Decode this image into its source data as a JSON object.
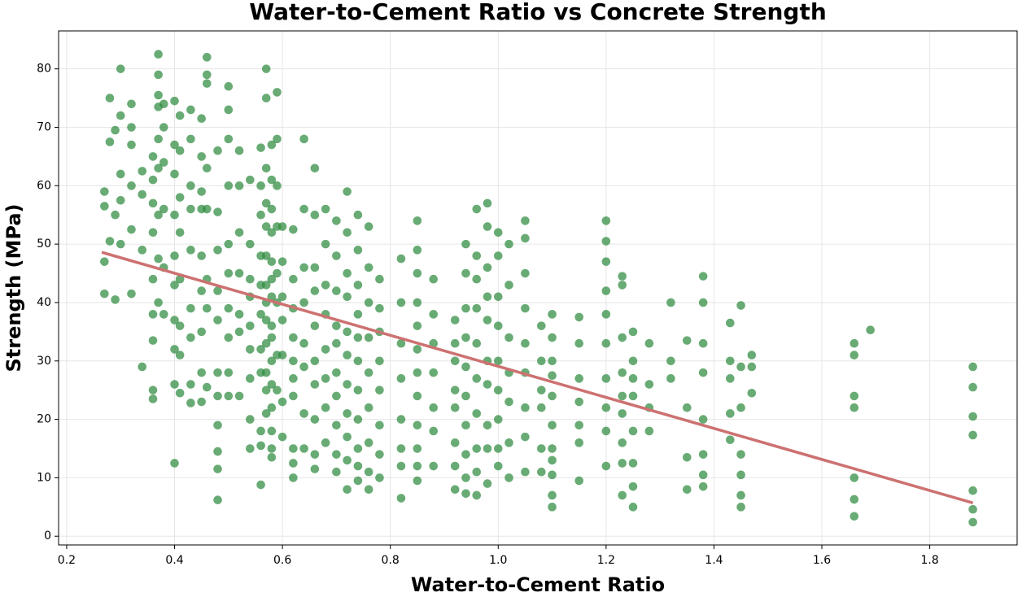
{
  "chart_data": {
    "type": "scatter",
    "title": "Water-to-Cement Ratio vs Concrete Strength",
    "xlabel": "Water-to-Cement Ratio",
    "ylabel": "Strength (MPa)",
    "color": "#2e8b3e",
    "grid": true,
    "xlim": [
      0.185,
      1.962
    ],
    "ylim": [
      -1.5,
      86.5
    ],
    "xticks": [
      0.2,
      0.4,
      0.6,
      0.8,
      {
        "value": 1,
        "label": "1.0"
      },
      1.2,
      1.4,
      1.6,
      1.8
    ],
    "yticks": [
      0,
      10,
      20,
      30,
      40,
      50,
      60,
      70,
      80
    ],
    "x": [
      0.27,
      0.27,
      0.27,
      0.27,
      0.28,
      0.28,
      0.28,
      0.29,
      0.29,
      0.29,
      0.3,
      0.3,
      0.3,
      0.3,
      0.3,
      0.32,
      0.32,
      0.32,
      0.32,
      0.32,
      0.32,
      0.34,
      0.34,
      0.34,
      0.34,
      0.36,
      0.36,
      0.36,
      0.36,
      0.36,
      0.36,
      0.36,
      0.36,
      0.36,
      0.37,
      0.37,
      0.37,
      0.37,
      0.37,
      0.37,
      0.37,
      0.37,
      0.37,
      0.38,
      0.38,
      0.38,
      0.38,
      0.38,
      0.38,
      0.4,
      0.4,
      0.4,
      0.4,
      0.4,
      0.4,
      0.4,
      0.4,
      0.4,
      0.4,
      0.41,
      0.41,
      0.41,
      0.41,
      0.41,
      0.41,
      0.41,
      0.41,
      0.43,
      0.43,
      0.43,
      0.43,
      0.43,
      0.43,
      0.43,
      0.43,
      0.43,
      0.45,
      0.45,
      0.45,
      0.45,
      0.45,
      0.45,
      0.45,
      0.45,
      0.45,
      0.46,
      0.46,
      0.46,
      0.46,
      0.46,
      0.46,
      0.46,
      0.46,
      0.48,
      0.48,
      0.48,
      0.48,
      0.48,
      0.48,
      0.48,
      0.48,
      0.48,
      0.48,
      0.48,
      0.5,
      0.5,
      0.5,
      0.5,
      0.5,
      0.5,
      0.5,
      0.5,
      0.5,
      0.5,
      0.52,
      0.52,
      0.52,
      0.52,
      0.52,
      0.52,
      0.52,
      0.54,
      0.54,
      0.54,
      0.54,
      0.54,
      0.54,
      0.54,
      0.54,
      0.54,
      0.56,
      0.56,
      0.56,
      0.56,
      0.56,
      0.56,
      0.56,
      0.56,
      0.56,
      0.56,
      0.56,
      0.57,
      0.57,
      0.57,
      0.57,
      0.57,
      0.57,
      0.57,
      0.57,
      0.57,
      0.57,
      0.57,
      0.57,
      0.57,
      0.58,
      0.58,
      0.58,
      0.58,
      0.58,
      0.58,
      0.58,
      0.58,
      0.58,
      0.58,
      0.58,
      0.58,
      0.58,
      0.58,
      0.58,
      0.59,
      0.59,
      0.59,
      0.59,
      0.59,
      0.59,
      0.59,
      0.59,
      0.6,
      0.6,
      0.6,
      0.6,
      0.6,
      0.6,
      0.6,
      0.62,
      0.62,
      0.62,
      0.62,
      0.62,
      0.62,
      0.62,
      0.62,
      0.62,
      0.62,
      0.64,
      0.64,
      0.64,
      0.64,
      0.64,
      0.64,
      0.64,
      0.64,
      0.66,
      0.66,
      0.66,
      0.66,
      0.66,
      0.66,
      0.66,
      0.66,
      0.66,
      0.66,
      0.68,
      0.68,
      0.68,
      0.68,
      0.68,
      0.68,
      0.68,
      0.68,
      0.7,
      0.7,
      0.7,
      0.7,
      0.7,
      0.7,
      0.7,
      0.7,
      0.7,
      0.7,
      0.72,
      0.72,
      0.72,
      0.72,
      0.72,
      0.72,
      0.72,
      0.72,
      0.72,
      0.72,
      0.72,
      0.74,
      0.74,
      0.74,
      0.74,
      0.74,
      0.74,
      0.74,
      0.74,
      0.74,
      0.74,
      0.74,
      0.76,
      0.76,
      0.76,
      0.76,
      0.76,
      0.76,
      0.76,
      0.76,
      0.76,
      0.78,
      0.78,
      0.78,
      0.78,
      0.78,
      0.78,
      0.78,
      0.78,
      0.82,
      0.82,
      0.82,
      0.82,
      0.82,
      0.82,
      0.82,
      0.82,
      0.85,
      0.85,
      0.85,
      0.85,
      0.85,
      0.85,
      0.85,
      0.85,
      0.85,
      0.85,
      0.85,
      0.85,
      0.88,
      0.88,
      0.88,
      0.88,
      0.88,
      0.88,
      0.88,
      0.92,
      0.92,
      0.92,
      0.92,
      0.92,
      0.92,
      0.92,
      0.92,
      0.94,
      0.94,
      0.94,
      0.94,
      0.94,
      0.94,
      0.94,
      0.94,
      0.94,
      0.94,
      0.96,
      0.96,
      0.96,
      0.96,
      0.96,
      0.96,
      0.96,
      0.96,
      0.96,
      0.96,
      0.98,
      0.98,
      0.98,
      0.98,
      0.98,
      0.98,
      0.98,
      0.98,
      0.98,
      0.98,
      1.0,
      1.0,
      1.0,
      1.0,
      1.0,
      1.0,
      1.0,
      1.0,
      1.0,
      1.02,
      1.02,
      1.02,
      1.02,
      1.02,
      1.02,
      1.02,
      1.05,
      1.05,
      1.05,
      1.05,
      1.05,
      1.05,
      1.05,
      1.05,
      1.05,
      1.08,
      1.08,
      1.08,
      1.08,
      1.08,
      1.08,
      1.1,
      1.1,
      1.1,
      1.1,
      1.1,
      1.1,
      1.1,
      1.1,
      1.1,
      1.1,
      1.1,
      1.15,
      1.15,
      1.15,
      1.15,
      1.15,
      1.15,
      1.15,
      1.2,
      1.2,
      1.2,
      1.2,
      1.2,
      1.2,
      1.2,
      1.2,
      1.2,
      1.2,
      1.23,
      1.23,
      1.23,
      1.23,
      1.23,
      1.23,
      1.23,
      1.23,
      1.23,
      1.25,
      1.25,
      1.25,
      1.25,
      1.25,
      1.25,
      1.25,
      1.25,
      1.28,
      1.28,
      1.28,
      1.28,
      1.32,
      1.32,
      1.32,
      1.35,
      1.35,
      1.35,
      1.35,
      1.38,
      1.38,
      1.38,
      1.38,
      1.38,
      1.38,
      1.38,
      1.38,
      1.43,
      1.43,
      1.43,
      1.43,
      1.43,
      1.45,
      1.45,
      1.45,
      1.45,
      1.45,
      1.45,
      1.45,
      1.47,
      1.47,
      1.47,
      1.66,
      1.66,
      1.66,
      1.66,
      1.66,
      1.66,
      1.66,
      1.69,
      1.88,
      1.88,
      1.88,
      1.88,
      1.88,
      1.88,
      1.88
    ],
    "values": [
      59,
      56.5,
      47,
      41.5,
      75,
      67.5,
      50.5,
      69.5,
      55,
      40.5,
      80,
      72,
      62,
      57.5,
      50,
      74,
      70,
      67,
      60,
      52.5,
      41.5,
      62.5,
      58.5,
      49,
      29,
      65,
      61,
      57,
      52,
      44,
      38,
      33.5,
      25,
      23.5,
      82.5,
      79,
      75.5,
      73.5,
      68,
      63,
      55,
      47.5,
      40,
      74,
      70,
      64,
      56,
      46,
      38,
      74.5,
      67,
      62,
      55,
      48,
      43,
      37,
      32,
      26,
      12.5,
      72,
      66,
      58,
      52,
      44,
      36,
      31,
      24.5,
      73,
      68,
      60,
      56,
      49,
      39,
      34,
      26,
      22.8,
      71.5,
      65,
      59,
      56,
      48,
      42,
      35,
      28,
      23,
      82,
      79,
      77.5,
      63,
      56,
      44,
      39,
      25.5,
      66,
      55.5,
      49,
      42,
      37,
      28,
      24,
      19,
      14.5,
      11.5,
      6.2,
      77,
      73,
      68,
      60,
      50,
      45,
      39,
      34,
      28,
      24,
      66,
      60,
      52,
      45,
      38,
      35,
      24,
      61,
      50,
      44,
      41,
      36,
      32,
      27,
      20,
      15,
      66.5,
      60,
      55,
      48,
      43,
      38,
      32,
      28,
      18,
      15.5,
      8.8,
      80,
      75,
      63,
      57,
      53,
      48,
      43,
      40,
      37,
      33,
      28,
      25,
      21,
      67,
      61,
      56,
      52,
      47,
      44,
      41,
      36,
      34,
      30,
      26,
      22,
      18,
      15,
      13.5,
      76,
      68,
      60,
      53,
      45,
      40,
      31,
      25,
      53,
      47,
      41,
      37,
      31,
      23,
      17,
      52.5,
      44,
      39,
      34,
      30,
      27,
      24,
      15,
      12.5,
      10,
      68,
      56,
      46,
      40,
      33,
      29,
      21,
      15,
      63,
      55,
      46,
      42,
      36,
      30,
      26,
      20,
      14,
      11.5,
      56,
      50,
      43,
      38,
      32,
      27,
      22,
      16,
      54,
      48,
      42,
      36,
      33,
      28,
      24,
      19,
      14,
      11,
      59,
      52,
      45,
      41,
      35,
      31,
      26,
      21,
      17,
      13,
      8,
      55,
      49,
      43,
      38,
      34,
      30,
      25,
      20,
      15,
      12,
      9.5,
      53,
      46,
      40,
      34,
      28,
      22,
      16,
      11,
      8,
      44,
      39,
      35,
      30,
      25,
      19,
      14,
      10,
      47.5,
      40,
      33,
      27,
      20,
      15,
      12,
      6.5,
      54,
      49,
      45,
      40,
      36,
      32,
      28,
      24,
      19,
      15,
      12,
      9.5,
      44,
      38,
      33,
      28,
      22,
      18,
      12,
      37,
      33,
      30,
      25,
      22,
      16,
      12,
      8,
      50,
      45,
      39,
      34,
      29,
      24,
      19,
      14,
      10,
      7.3,
      56,
      48,
      44,
      39,
      33,
      27,
      21,
      15,
      11,
      7,
      57,
      53,
      46,
      41,
      37,
      30,
      26,
      19,
      15,
      9,
      52,
      48,
      41,
      36,
      30,
      25,
      20,
      15,
      12,
      50,
      43,
      34,
      28,
      23,
      16,
      10,
      54,
      51,
      45,
      39,
      33,
      28,
      22,
      17,
      11,
      36,
      30,
      25,
      22,
      15,
      11,
      38,
      34,
      30,
      27.5,
      24,
      19,
      15,
      13,
      10.5,
      7,
      5,
      37.5,
      33,
      27,
      23,
      19,
      16,
      9.5,
      54,
      50.5,
      47,
      42,
      38,
      33,
      27,
      22,
      18,
      12,
      44.5,
      43,
      34,
      28,
      24,
      21,
      16,
      12.5,
      7,
      35,
      30,
      27,
      24,
      18,
      12.5,
      8.5,
      5,
      33,
      26,
      22,
      18,
      40,
      30,
      27,
      33.5,
      22,
      13.5,
      8,
      44.5,
      40,
      33,
      28,
      20,
      14,
      10.5,
      8.5,
      36.5,
      30,
      27,
      21,
      16.5,
      39.5,
      29,
      22,
      14,
      10.5,
      7,
      5,
      31,
      29,
      24.5,
      33,
      31,
      24,
      22,
      10,
      6.3,
      3.4,
      35.3,
      29,
      25.5,
      20.5,
      17.3,
      7.8,
      4.6,
      2.4
    ],
    "trend": {
      "x": [
        0.265,
        1.88
      ],
      "values": [
        48.6,
        5.7
      ],
      "color": "#cd7171"
    }
  }
}
